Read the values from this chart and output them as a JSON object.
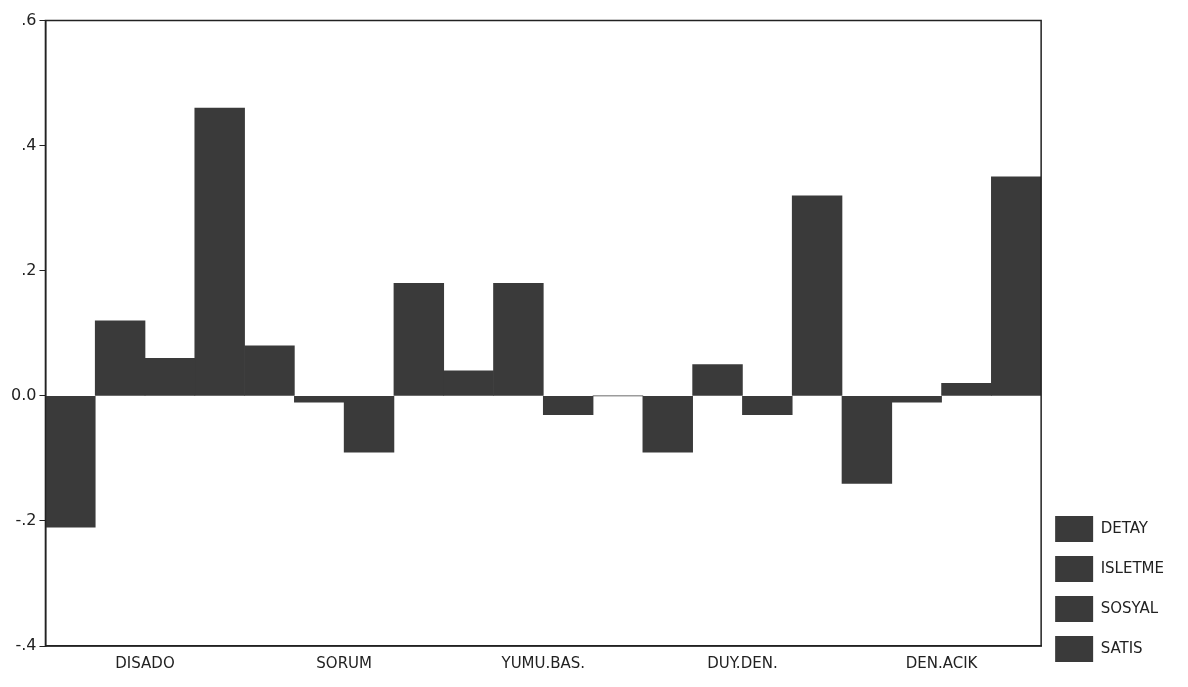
{
  "chart_data": {
    "type": "bar",
    "categories": [
      "DISADO",
      "SORUM",
      "YUMU.BAS.",
      "DUY.DEN.",
      "DEN.ACIK"
    ],
    "series": [
      {
        "name": "DETAY",
        "color": "#3a3a3a",
        "values": [
          -0.21,
          0.08,
          0.04,
          -0.09,
          -0.14
        ]
      },
      {
        "name": "ISLETME",
        "color": "#3a3a3a",
        "values": [
          0.12,
          -0.01,
          0.18,
          0.05,
          -0.01
        ]
      },
      {
        "name": "SOSYAL",
        "color": "#3a3a3a",
        "values": [
          0.06,
          -0.09,
          -0.03,
          -0.03,
          0.02
        ]
      },
      {
        "name": "SATIS",
        "color": "#3a3a3a",
        "values": [
          0.46,
          0.18,
          0.0,
          0.32,
          0.35
        ]
      }
    ],
    "ylim": [
      -0.4,
      0.6
    ],
    "yticks": [
      {
        "value": -0.4,
        "label": "-.4"
      },
      {
        "value": -0.2,
        "label": "-.2"
      },
      {
        "value": 0,
        "label": "0.0"
      },
      {
        "value": 0.2,
        "label": ".2"
      },
      {
        "value": 0.4,
        "label": ".4"
      },
      {
        "value": 0.6,
        "label": ".6"
      }
    ],
    "grid": false,
    "legend": "bottom right"
  }
}
